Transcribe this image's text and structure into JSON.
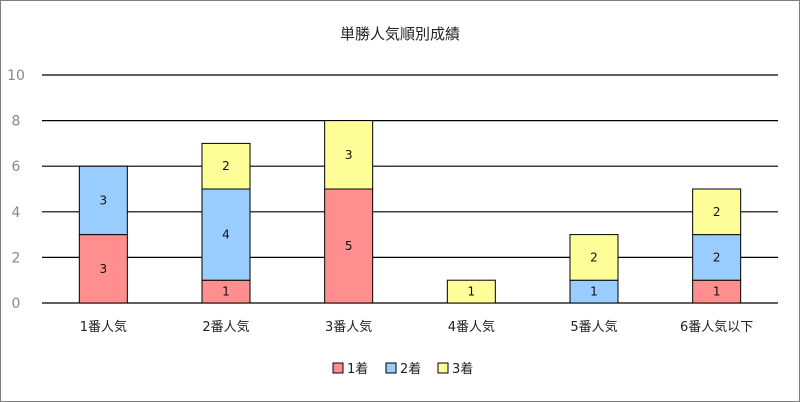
{
  "chart_data": {
    "type": "bar",
    "stacked": true,
    "title": "単勝人気順別成績",
    "categories": [
      "1番人気",
      "2番人気",
      "3番人気",
      "4番人気",
      "5番人気",
      "6番人気以下"
    ],
    "series": [
      {
        "name": "1着",
        "color": "#ff8f8f",
        "values": [
          3,
          1,
          5,
          0,
          0,
          1
        ]
      },
      {
        "name": "2着",
        "color": "#99ccff",
        "values": [
          3,
          4,
          0,
          0,
          1,
          2
        ]
      },
      {
        "name": "3着",
        "color": "#ffff99",
        "values": [
          0,
          2,
          3,
          1,
          2,
          2
        ]
      }
    ],
    "y_ticks": [
      "0",
      "2",
      "4",
      "6",
      "8",
      "10"
    ],
    "ylim": [
      0,
      10
    ],
    "grid": true,
    "legend_position": "bottom"
  }
}
